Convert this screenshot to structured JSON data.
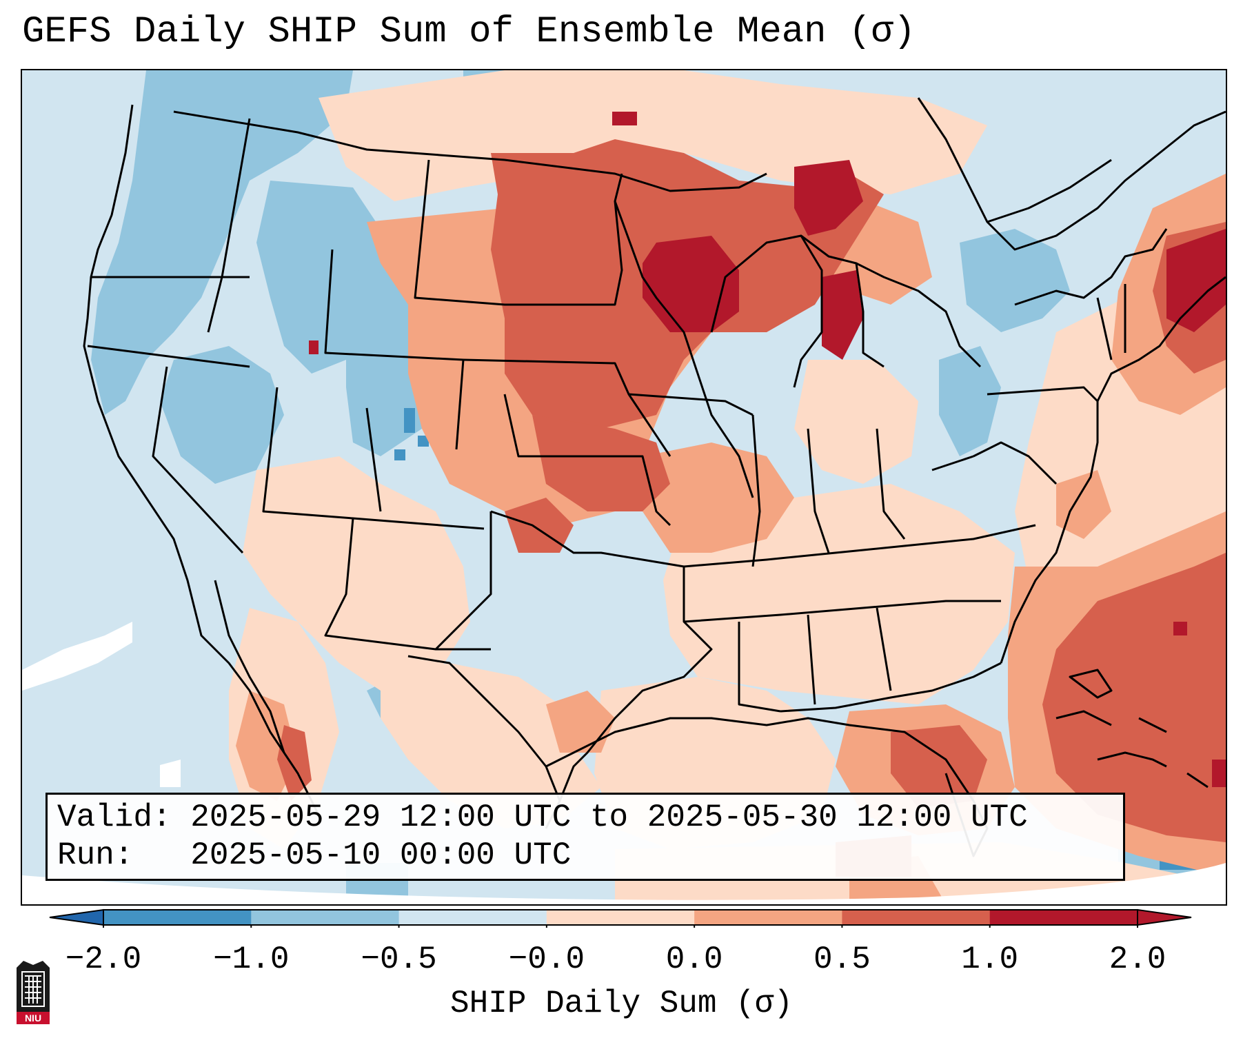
{
  "title": "GEFS Daily SHIP Sum of Ensemble Mean (σ)",
  "info": {
    "valid_line": "Valid: 2025-05-29 12:00 UTC to 2025-05-30 12:00 UTC",
    "run_line": "Run:   2025-05-10 00:00 UTC"
  },
  "colorbar": {
    "label": "SHIP Daily Sum (σ)",
    "ticks": [
      "−2.0",
      "−1.0",
      "−0.5",
      "−0.0",
      "0.0",
      "0.5",
      "1.0",
      "2.0"
    ],
    "colors": [
      "#4393c3",
      "#92c5de",
      "#d1e5f0",
      "#fddbc7",
      "#f4a582",
      "#d6604d",
      "#b2182b"
    ],
    "extend_low_color": "#2166ac",
    "extend_high_color": "#b2182b"
  },
  "map": {
    "background_color": "#d1e5f0",
    "outside_domain_color": "#ffffff",
    "line_color": "#000000"
  },
  "logo": {
    "text": "NIU",
    "name": "niu-logo"
  }
}
